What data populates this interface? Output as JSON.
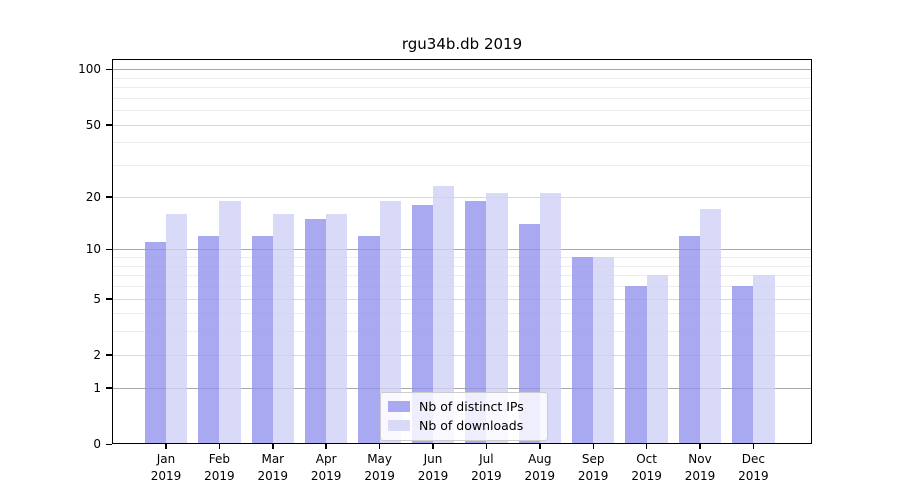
{
  "figure": {
    "title": "rgu34b.db 2019"
  },
  "chart_data": {
    "type": "bar",
    "title": "rgu34b.db 2019",
    "categories": [
      "Jan",
      "Feb",
      "Mar",
      "Apr",
      "May",
      "Jun",
      "Jul",
      "Aug",
      "Sep",
      "Oct",
      "Nov",
      "Dec"
    ],
    "x_year": "2019",
    "series": [
      {
        "name": "Nb of distinct IPs",
        "color": "#a9a9f1",
        "fill": "rgba(148,148,238,0.8)",
        "values": [
          11,
          12,
          12,
          15,
          12,
          18,
          19,
          14,
          9,
          6,
          12,
          6
        ]
      },
      {
        "name": "Nb of downloads",
        "color": "#d9d9f8",
        "fill": "rgba(208,208,246,0.8)",
        "values": [
          16,
          19,
          16,
          16,
          19,
          23,
          21,
          21,
          9,
          7,
          17,
          7
        ]
      }
    ],
    "yscale": "log1p",
    "ylim": [
      0,
      114
    ],
    "y_ticks": [
      0,
      1,
      2,
      5,
      10,
      20,
      50,
      100
    ],
    "y_minor_ticks": [
      3,
      4,
      6,
      7,
      8,
      9,
      30,
      40,
      60,
      70,
      80,
      90
    ],
    "grid": true,
    "grid_colors": {
      "power10": "#a9a9a9",
      "labeled": "#d8d8d8",
      "minor": "#ededed"
    },
    "legend_position": "lower center"
  }
}
